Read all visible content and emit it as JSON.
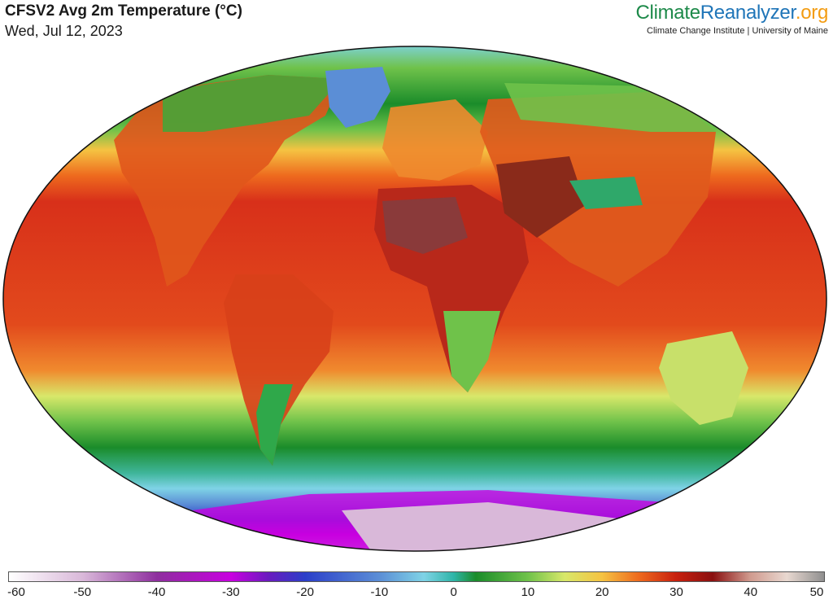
{
  "header": {
    "title": "CFSV2 Avg 2m Temperature (°C)",
    "date": "Wed, Jul 12, 2023"
  },
  "brand": {
    "part1": "Climate",
    "part2": "Reanalyzer",
    "part3": ".org",
    "affiliation": "Climate Change Institute | University of Maine",
    "colors": {
      "climate": "#1e8a4a",
      "reanalyzer": "#1f75b8",
      "org": "#f39c12"
    }
  },
  "map": {
    "projection": "Robinson (whole world)",
    "variable": "2m air temperature",
    "units": "°C"
  },
  "colorbar": {
    "min": -60,
    "max": 50,
    "ticks": [
      "-60",
      "-50",
      "-40",
      "-30",
      "-20",
      "-10",
      "0",
      "10",
      "20",
      "30",
      "40",
      "50"
    ],
    "stops": [
      {
        "t": -60,
        "color": "#ffffff"
      },
      {
        "t": -50,
        "color": "#d9b8d9"
      },
      {
        "t": -40,
        "color": "#8e2e9e"
      },
      {
        "t": -30,
        "color": "#c800e0"
      },
      {
        "t": -25,
        "color": "#6a1bbf"
      },
      {
        "t": -20,
        "color": "#2b3fc9"
      },
      {
        "t": -10,
        "color": "#5b8ed6"
      },
      {
        "t": -4,
        "color": "#7fd3e6"
      },
      {
        "t": 0,
        "color": "#2fb5a8"
      },
      {
        "t": 3,
        "color": "#1a8c2a"
      },
      {
        "t": 10,
        "color": "#6fc24a"
      },
      {
        "t": 15,
        "color": "#d8e86a"
      },
      {
        "t": 20,
        "color": "#f5c342"
      },
      {
        "t": 25,
        "color": "#ee6a1e"
      },
      {
        "t": 30,
        "color": "#c8200e"
      },
      {
        "t": 35,
        "color": "#8a1010"
      },
      {
        "t": 40,
        "color": "#d09a8e"
      },
      {
        "t": 45,
        "color": "#e8d8d0"
      },
      {
        "t": 50,
        "color": "#8f8f8f"
      }
    ]
  }
}
